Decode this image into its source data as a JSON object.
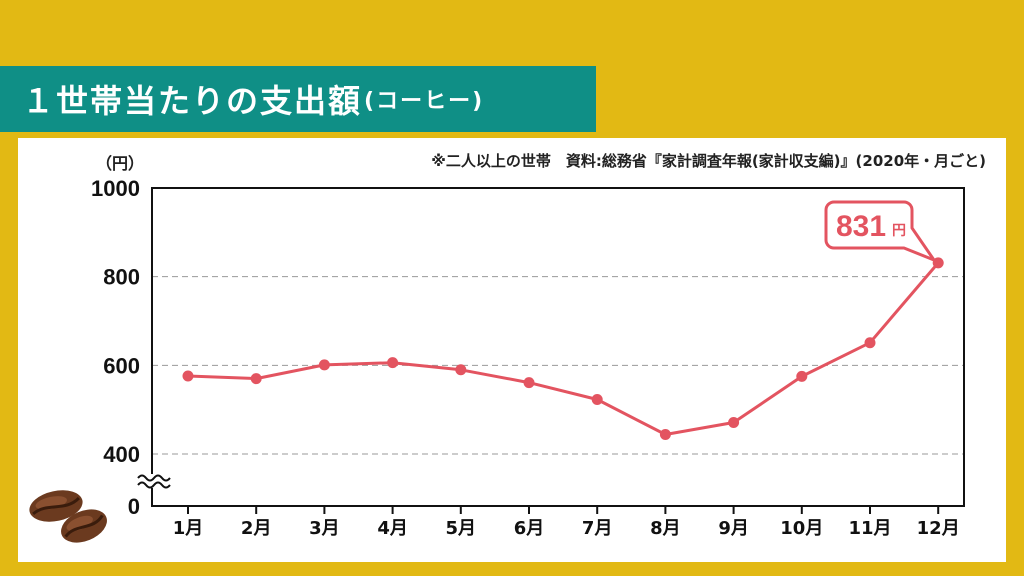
{
  "title": {
    "main": "１世帯当たりの支出額",
    "sub": "(コーヒー)"
  },
  "unit_label": "（円）",
  "source_note": "※二人以上の世帯　資料:総務省『家計調査年報(家計収支編)』(2020年・月ごと)",
  "colors": {
    "background": "#e2b914",
    "banner": "#0f8f86",
    "line": "#e35460"
  },
  "chart_data": {
    "type": "line",
    "title": "１世帯当たりの支出額(コーヒー)",
    "ylabel": "（円）",
    "xlabel": "",
    "categories": [
      "1月",
      "2月",
      "3月",
      "4月",
      "5月",
      "6月",
      "7月",
      "8月",
      "9月",
      "10月",
      "11月",
      "12月"
    ],
    "series": [
      {
        "values": [
          576,
          570,
          601,
          606,
          590,
          561,
          523,
          444,
          471,
          575,
          651,
          831
        ]
      }
    ],
    "yticks": [
      {
        "value": 1000,
        "label": "1000"
      },
      {
        "value": 800,
        "label": "800"
      },
      {
        "value": 600,
        "label": "600"
      },
      {
        "value": 400,
        "label": "400"
      },
      {
        "value": 0,
        "label": "0"
      }
    ],
    "ylim": [
      0,
      1000
    ],
    "axis_break": "between 0 and 400",
    "grid": "horizontal dashed at 400, 600, 800",
    "annotation": {
      "category": "12月",
      "value": "831",
      "unit": "円"
    }
  }
}
